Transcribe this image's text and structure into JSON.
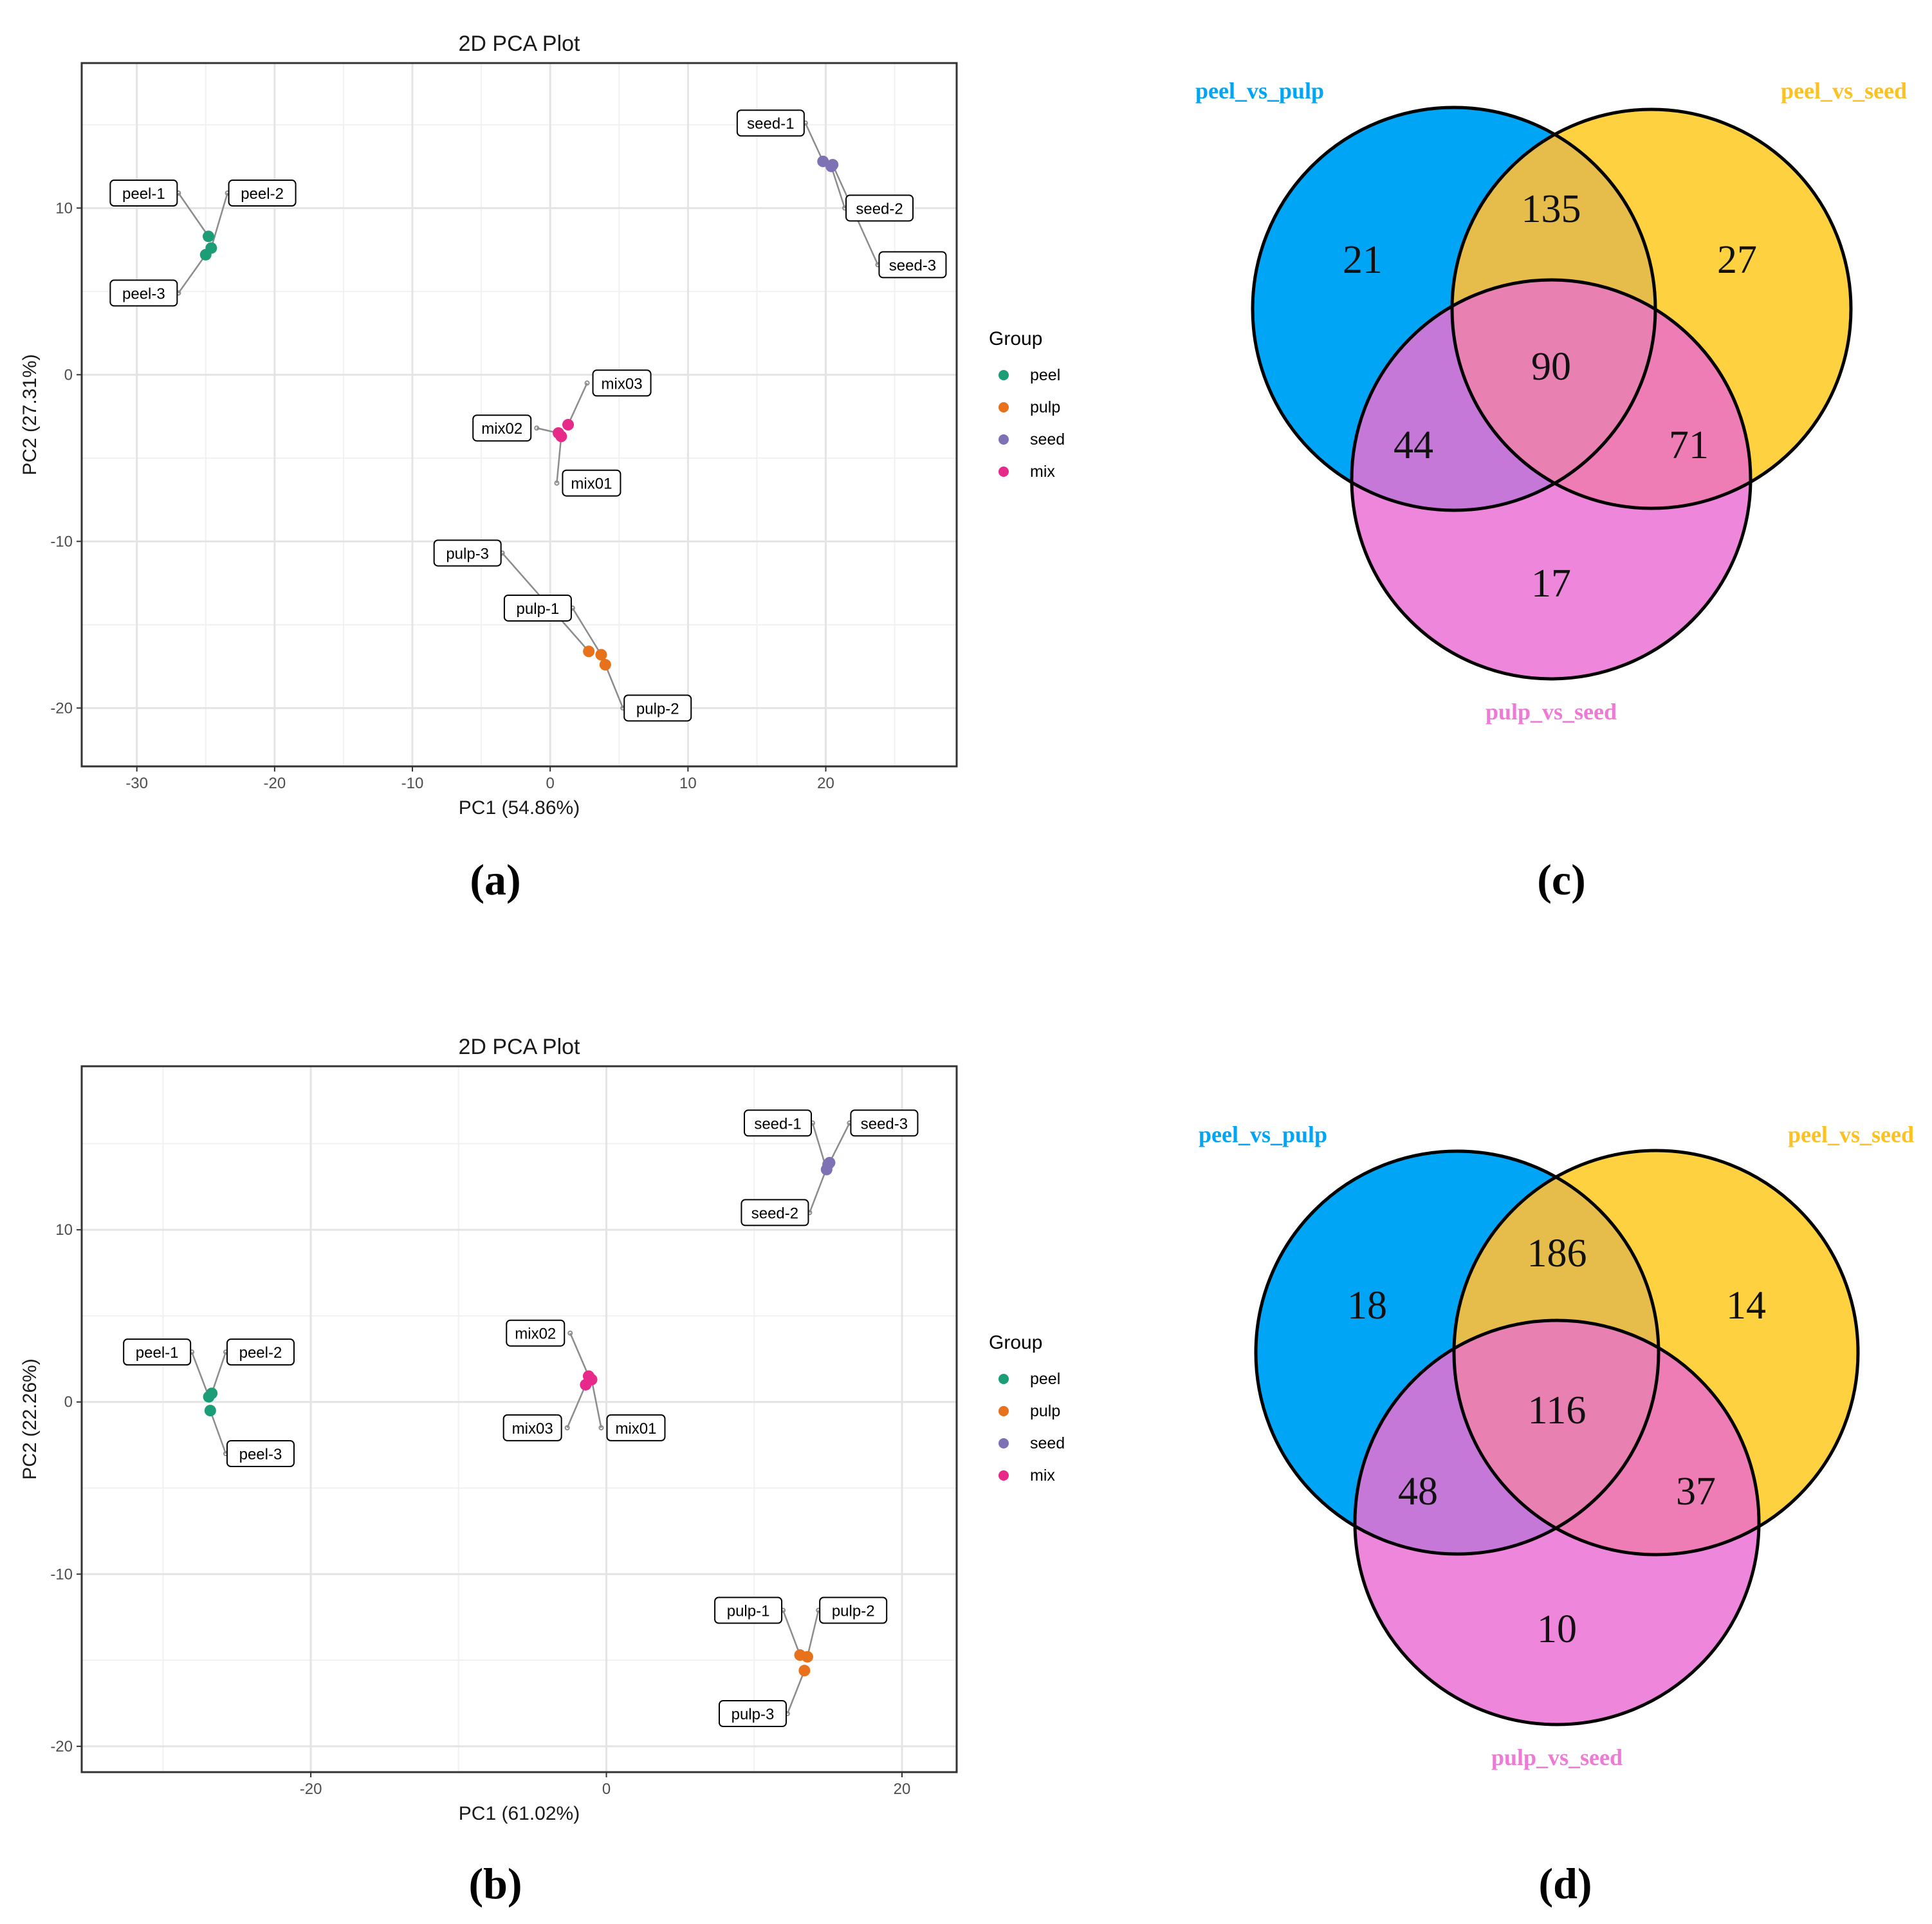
{
  "panel_labels": [
    "(a)",
    "(b)",
    "(c)",
    "(d)"
  ],
  "chart_data": [
    {
      "id": "a",
      "type": "scatter",
      "title": "2D PCA Plot",
      "xlabel": "PC1 (54.86%)",
      "ylabel": "PC2 (27.31%)",
      "xlim": [
        -34,
        29.5
      ],
      "ylim": [
        -23.5,
        18.7
      ],
      "xticks": [
        -30,
        -20,
        -10,
        0,
        10,
        20
      ],
      "yticks": [
        -20,
        -10,
        0,
        10
      ],
      "legend": {
        "title": "Group",
        "position": "right",
        "entries": [
          "peel",
          "pulp",
          "seed",
          "mix"
        ]
      },
      "group_colors": {
        "peel": "#1b9e77",
        "pulp": "#e8711c",
        "seed": "#7e71b4",
        "mix": "#e7298a"
      },
      "points": [
        {
          "label": "peel-1",
          "group": "peel",
          "x": -24.8,
          "y": 8.3,
          "lx": -29.5,
          "ly": 10.9,
          "dir": "r"
        },
        {
          "label": "peel-2",
          "group": "peel",
          "x": -24.6,
          "y": 7.6,
          "lx": -20.9,
          "ly": 10.9,
          "dir": "l"
        },
        {
          "label": "peel-3",
          "group": "peel",
          "x": -25.0,
          "y": 7.2,
          "lx": -29.5,
          "ly": 4.9,
          "dir": "r"
        },
        {
          "label": "pulp-1",
          "group": "pulp",
          "x": 3.7,
          "y": -16.8,
          "lx": -0.9,
          "ly": -14.0,
          "dir": "r"
        },
        {
          "label": "pulp-2",
          "group": "pulp",
          "x": 4.0,
          "y": -17.4,
          "lx": 7.8,
          "ly": -20.0,
          "dir": "l"
        },
        {
          "label": "pulp-3",
          "group": "pulp",
          "x": 2.8,
          "y": -16.6,
          "lx": -6.0,
          "ly": -10.7,
          "dir": "r"
        },
        {
          "label": "seed-1",
          "group": "seed",
          "x": 19.8,
          "y": 12.8,
          "lx": 16.0,
          "ly": 15.1,
          "dir": "r"
        },
        {
          "label": "seed-2",
          "group": "seed",
          "x": 20.4,
          "y": 12.5,
          "lx": 23.9,
          "ly": 10.0,
          "dir": "l"
        },
        {
          "label": "seed-3",
          "group": "seed",
          "x": 20.5,
          "y": 12.6,
          "lx": 26.3,
          "ly": 6.6,
          "dir": "l"
        },
        {
          "label": "mix01",
          "group": "mix",
          "x": 0.8,
          "y": -3.7,
          "lx": 3.0,
          "ly": -6.5,
          "dir": "l"
        },
        {
          "label": "mix02",
          "group": "mix",
          "x": 0.6,
          "y": -3.5,
          "lx": -3.5,
          "ly": -3.2,
          "dir": "r"
        },
        {
          "label": "mix03",
          "group": "mix",
          "x": 1.3,
          "y": -3.0,
          "lx": 5.2,
          "ly": -0.5,
          "dir": "l"
        }
      ]
    },
    {
      "id": "b",
      "type": "scatter",
      "title": "2D PCA Plot",
      "xlabel": "PC1 (61.02%)",
      "ylabel": "PC2 (22.26%)",
      "xlim": [
        -35.5,
        23.7
      ],
      "ylim": [
        -21.5,
        19.5
      ],
      "xticks": [
        -20,
        0,
        20
      ],
      "yticks": [
        -20,
        -10,
        0,
        10
      ],
      "legend": {
        "title": "Group",
        "position": "right",
        "entries": [
          "peel",
          "pulp",
          "seed",
          "mix"
        ]
      },
      "group_colors": {
        "peel": "#1b9e77",
        "pulp": "#e8711c",
        "seed": "#7e71b4",
        "mix": "#e7298a"
      },
      "points": [
        {
          "label": "peel-1",
          "group": "peel",
          "x": -26.9,
          "y": 0.3,
          "lx": -30.4,
          "ly": 2.9,
          "dir": "r"
        },
        {
          "label": "peel-2",
          "group": "peel",
          "x": -26.7,
          "y": 0.5,
          "lx": -23.4,
          "ly": 2.9,
          "dir": "l"
        },
        {
          "label": "peel-3",
          "group": "peel",
          "x": -26.8,
          "y": -0.5,
          "lx": -23.4,
          "ly": -3.0,
          "dir": "l"
        },
        {
          "label": "pulp-1",
          "group": "pulp",
          "x": 13.1,
          "y": -14.7,
          "lx": 9.6,
          "ly": -12.1,
          "dir": "r"
        },
        {
          "label": "pulp-2",
          "group": "pulp",
          "x": 13.6,
          "y": -14.8,
          "lx": 16.7,
          "ly": -12.1,
          "dir": "l"
        },
        {
          "label": "pulp-3",
          "group": "pulp",
          "x": 13.4,
          "y": -15.6,
          "lx": 9.9,
          "ly": -18.1,
          "dir": "r"
        },
        {
          "label": "seed-1",
          "group": "seed",
          "x": 14.9,
          "y": 13.5,
          "lx": 11.6,
          "ly": 16.2,
          "dir": "r"
        },
        {
          "label": "seed-2",
          "group": "seed",
          "x": 15.0,
          "y": 13.8,
          "lx": 11.4,
          "ly": 11.0,
          "dir": "r"
        },
        {
          "label": "seed-3",
          "group": "seed",
          "x": 15.1,
          "y": 13.9,
          "lx": 18.8,
          "ly": 16.2,
          "dir": "l"
        },
        {
          "label": "mix01",
          "group": "mix",
          "x": -1.0,
          "y": 1.3,
          "lx": 2.0,
          "ly": -1.5,
          "dir": "l"
        },
        {
          "label": "mix02",
          "group": "mix",
          "x": -1.2,
          "y": 1.5,
          "lx": -4.8,
          "ly": 4.0,
          "dir": "r"
        },
        {
          "label": "mix03",
          "group": "mix",
          "x": -1.4,
          "y": 1.0,
          "lx": -5.0,
          "ly": -1.5,
          "dir": "r"
        }
      ]
    },
    {
      "id": "c",
      "type": "venn",
      "sets": [
        {
          "name": "peel_vs_pulp",
          "color": "#00a5f5",
          "label_color": "#00a5f5"
        },
        {
          "name": "peel_vs_seed",
          "color": "#fdd13f",
          "label_color": "#fdc121"
        },
        {
          "name": "pulp_vs_seed",
          "color": "#ee86dc",
          "label_color": "#ee7ad6"
        }
      ],
      "regions": {
        "only_a": 21,
        "only_b": 27,
        "only_c": 17,
        "ab": 135,
        "ac": 44,
        "bc": 71,
        "abc": 90
      }
    },
    {
      "id": "d",
      "type": "venn",
      "sets": [
        {
          "name": "peel_vs_pulp",
          "color": "#00a5f5",
          "label_color": "#00a5f5"
        },
        {
          "name": "peel_vs_seed",
          "color": "#fdd13f",
          "label_color": "#fdc121"
        },
        {
          "name": "pulp_vs_seed",
          "color": "#ee86dc",
          "label_color": "#ee7ad6"
        }
      ],
      "regions": {
        "only_a": 18,
        "only_b": 14,
        "only_c": 10,
        "ab": 186,
        "ac": 48,
        "bc": 37,
        "abc": 116
      }
    }
  ]
}
